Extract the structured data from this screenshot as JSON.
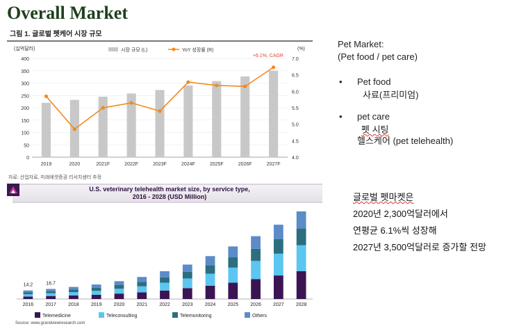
{
  "slide_title": "Overall Market",
  "chart1": {
    "caption": "그림 1. 글로벌 펫케어 시장 규모",
    "y_unit_left": "(십억달러)",
    "y_unit_right": "(%)",
    "legend_bar": "시장 규모 (L)",
    "legend_line": "YoY 성장률 (R)",
    "cagr_note": "+6.1%, CAGR",
    "source": "자료: 산업자료, 미래에셋증권 리서치센터 추정",
    "colors": {
      "bar": "#c8c8c8",
      "line": "#f28a1e"
    }
  },
  "chart2": {
    "title_line1": "U.S. veterinary telehealth market size, by service type,",
    "title_line2": "2016 - 2028 (USD Million)",
    "source": "Source: www.grandviewresearch.com",
    "colors": {
      "Telemedicine": "#3b1553",
      "Teleconsulting": "#5bc6f0",
      "Telemonitoring": "#2c6e7e",
      "Others": "#5b8cc9"
    }
  },
  "side": {
    "heading": "Pet Market:",
    "subheading": "(Pet food / pet care)",
    "bullet1_title": "Pet food",
    "bullet1_sub": "사료(프리미엄)",
    "bullet2_title": "pet care",
    "bullet2_sub1": "펫 시팅",
    "bullet2_sub2": "헬스케어 (pet telehealth)"
  },
  "summary": {
    "line1": "글로벌 펫마켓은",
    "line2": "2020년 2,300억달러에서",
    "line3": "연평균 6.1%씩 성장해",
    "line4": "2027년 3,500억달러로 증가할 전망"
  },
  "chart_data": [
    {
      "type": "bar",
      "title": "그림 1. 글로벌 펫케어 시장 규모",
      "categories": [
        "2019",
        "2020",
        "2021F",
        "2022F",
        "2023F",
        "2024F",
        "2025F",
        "2026F",
        "2027F"
      ],
      "series": [
        {
          "name": "시장 규모 (L)",
          "values": [
            220,
            232,
            245,
            258,
            272,
            290,
            308,
            327,
            350
          ],
          "axis": "left"
        },
        {
          "name": "YoY 성장률 (R)",
          "type": "line",
          "values": [
            5.85,
            4.85,
            5.5,
            5.65,
            5.4,
            6.28,
            6.18,
            6.15,
            6.73
          ],
          "axis": "right"
        }
      ],
      "ylabel": "(십억달러)",
      "ylim": [
        0,
        400
      ],
      "yticks": [
        0,
        50,
        100,
        150,
        200,
        250,
        300,
        350,
        400
      ],
      "y2label": "(%)",
      "y2lim": [
        4.0,
        7.0
      ],
      "y2ticks": [
        "4.0",
        "4.5",
        "5.0",
        "5.5",
        "6.0",
        "6.5",
        "7.0"
      ],
      "annotation": "+6.1%, CAGR",
      "legend": "top-right"
    },
    {
      "type": "bar",
      "stacked": true,
      "title": "U.S. veterinary telehealth market size, by service type, 2016 - 2028 (USD Million)",
      "categories": [
        "2016",
        "2017",
        "2018",
        "2019",
        "2020",
        "2021",
        "2022",
        "2023",
        "2024",
        "2025",
        "2026",
        "2027",
        "2028"
      ],
      "series": [
        {
          "name": "Telemedicine",
          "values": [
            4,
            5,
            6,
            7,
            9,
            11,
            14,
            18,
            22,
            27,
            33,
            39,
            46
          ]
        },
        {
          "name": "Teleconsulting",
          "values": [
            4,
            4.5,
            5.5,
            6.5,
            8,
            10,
            13,
            16,
            20,
            25,
            30,
            36,
            43
          ]
        },
        {
          "name": "Telemonitoring",
          "values": [
            3,
            3.5,
            4,
            5,
            6,
            7.5,
            9,
            11,
            14,
            17,
            20,
            24,
            28
          ]
        },
        {
          "name": "Others",
          "values": [
            3.2,
            3.7,
            4.5,
            5.5,
            6.5,
            8,
            10,
            12,
            15,
            18,
            21,
            24,
            28
          ]
        }
      ],
      "data_labels": {
        "2016": "14.2",
        "2017": "16.7"
      },
      "legend": "bottom"
    }
  ]
}
